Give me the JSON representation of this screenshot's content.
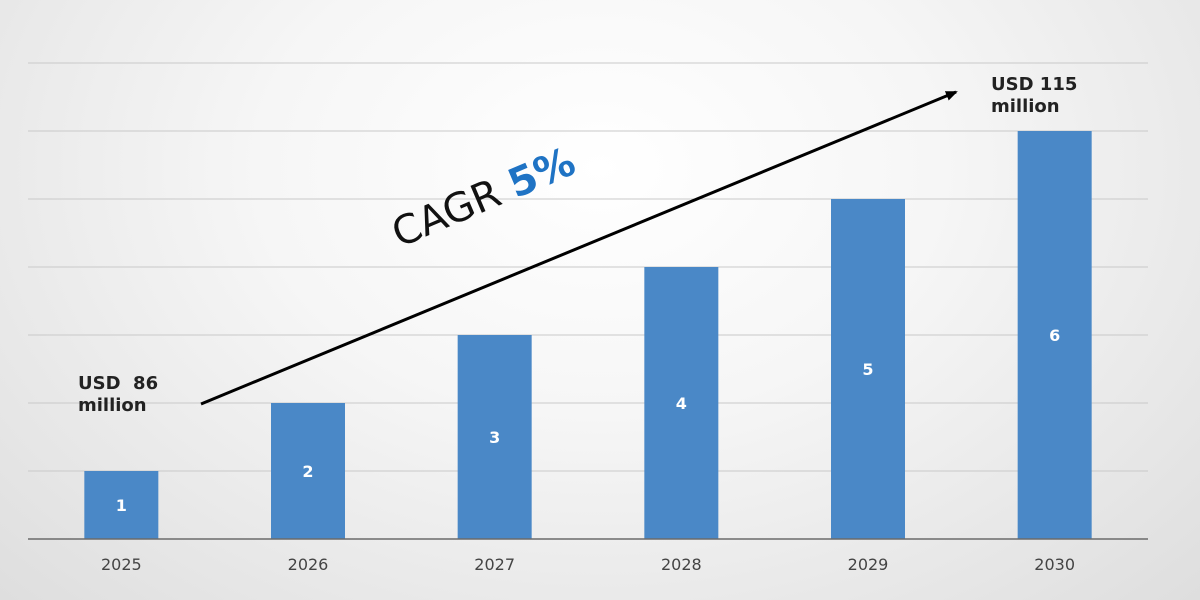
{
  "chart_data": {
    "type": "bar",
    "categories": [
      "2025",
      "2026",
      "2027",
      "2028",
      "2029",
      "2030"
    ],
    "values": [
      1,
      2,
      3,
      4,
      5,
      6
    ],
    "data_labels": [
      "1",
      "2",
      "3",
      "4",
      "5",
      "6"
    ],
    "ylim": [
      0,
      7
    ],
    "grid": true,
    "bar_color": "#4a88c7",
    "annotations": {
      "start_line1": "USD  86",
      "start_line2": "million",
      "end_line1": "USD 115",
      "end_line2": "million",
      "cagr_text": "CAGR",
      "cagr_value": "5%"
    }
  }
}
